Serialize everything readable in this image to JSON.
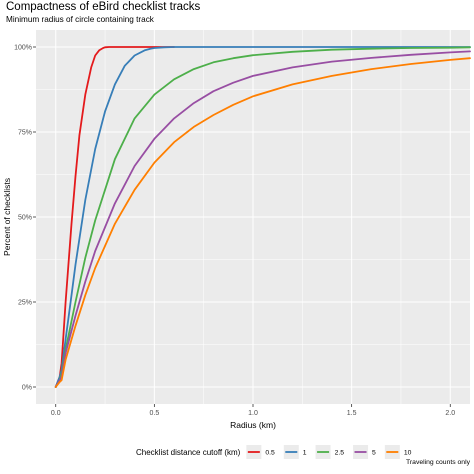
{
  "title": "Compactness of eBird checklist tracks",
  "subtitle": "Minimum radius of circle containing track",
  "caption": "Traveling counts only",
  "chart_data": {
    "type": "line",
    "title": "Compactness of eBird checklist tracks",
    "subtitle": "Minimum radius of circle containing track",
    "xlabel": "Radius (km)",
    "ylabel": "Percent of checklists",
    "xlim": [
      -0.1,
      2.1
    ],
    "ylim": [
      -0.05,
      1.05
    ],
    "x_ticks": [
      0.0,
      0.5,
      1.0,
      1.5,
      2.0
    ],
    "x_tick_labels": [
      "0.0",
      "0.5",
      "1.0",
      "1.5",
      "2.0"
    ],
    "y_ticks": [
      0,
      0.25,
      0.5,
      0.75,
      1.0
    ],
    "y_tick_labels": [
      "0%",
      "25%",
      "50%",
      "75%",
      "100%"
    ],
    "grid": true,
    "legend": {
      "title": "Checklist distance cutoff (km)",
      "position": "bottom"
    },
    "series": [
      {
        "name": "0.5",
        "color": "#e41a1c",
        "x": [
          0,
          0.02,
          0.03,
          0.05,
          0.08,
          0.1,
          0.12,
          0.15,
          0.18,
          0.2,
          0.22,
          0.24,
          0.25,
          0.27,
          0.3,
          0.35,
          0.4,
          0.5,
          0.6
        ],
        "y": [
          0,
          0.03,
          0.07,
          0.25,
          0.48,
          0.62,
          0.74,
          0.86,
          0.94,
          0.975,
          0.99,
          0.997,
          0.999,
          1.0,
          1.0,
          1.0,
          1.0,
          1.0,
          1.0
        ]
      },
      {
        "name": "1",
        "color": "#377eb8",
        "x": [
          0,
          0.02,
          0.03,
          0.05,
          0.08,
          0.1,
          0.15,
          0.2,
          0.25,
          0.3,
          0.35,
          0.4,
          0.45,
          0.48,
          0.5,
          0.55,
          0.6,
          0.7,
          0.75,
          1.0,
          1.5,
          2.1
        ],
        "y": [
          0,
          0.03,
          0.05,
          0.14,
          0.27,
          0.36,
          0.55,
          0.7,
          0.81,
          0.89,
          0.945,
          0.975,
          0.99,
          0.995,
          0.997,
          0.999,
          1.0,
          1.0,
          1.0,
          1.0,
          1.0,
          1.0
        ]
      },
      {
        "name": "2.5",
        "color": "#4daf4a",
        "x": [
          0,
          0.02,
          0.03,
          0.05,
          0.1,
          0.15,
          0.2,
          0.3,
          0.4,
          0.5,
          0.6,
          0.7,
          0.8,
          0.9,
          1.0,
          1.2,
          1.4,
          1.6,
          1.8,
          2.0,
          2.1
        ],
        "y": [
          0,
          0.02,
          0.04,
          0.11,
          0.25,
          0.38,
          0.49,
          0.67,
          0.79,
          0.86,
          0.905,
          0.935,
          0.955,
          0.967,
          0.976,
          0.986,
          0.992,
          0.995,
          0.997,
          0.998,
          0.999
        ]
      },
      {
        "name": "5",
        "color": "#984ea3",
        "x": [
          0,
          0.02,
          0.03,
          0.05,
          0.1,
          0.15,
          0.2,
          0.3,
          0.4,
          0.5,
          0.6,
          0.7,
          0.8,
          0.9,
          1.0,
          1.2,
          1.4,
          1.6,
          1.8,
          2.0,
          2.1
        ],
        "y": [
          0,
          0.02,
          0.03,
          0.1,
          0.21,
          0.31,
          0.4,
          0.54,
          0.65,
          0.73,
          0.79,
          0.835,
          0.87,
          0.895,
          0.915,
          0.94,
          0.957,
          0.968,
          0.977,
          0.984,
          0.987
        ]
      },
      {
        "name": "10",
        "color": "#ff7f00",
        "x": [
          0,
          0.02,
          0.03,
          0.05,
          0.1,
          0.15,
          0.2,
          0.3,
          0.4,
          0.5,
          0.6,
          0.7,
          0.8,
          0.9,
          1.0,
          1.2,
          1.4,
          1.6,
          1.8,
          2.0,
          2.1
        ],
        "y": [
          0,
          0.015,
          0.02,
          0.08,
          0.18,
          0.27,
          0.35,
          0.48,
          0.58,
          0.66,
          0.72,
          0.765,
          0.8,
          0.83,
          0.855,
          0.89,
          0.915,
          0.935,
          0.95,
          0.962,
          0.967
        ]
      }
    ]
  }
}
